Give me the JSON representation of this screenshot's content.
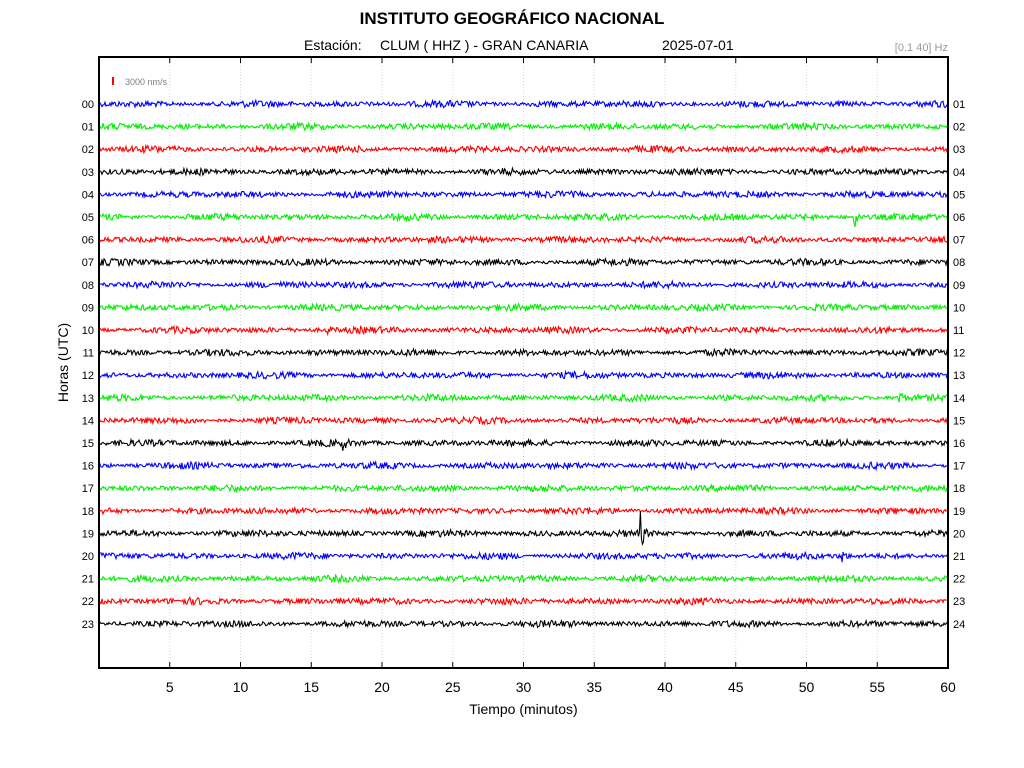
{
  "header": {
    "institution": "INSTITUTO GEOGRÁFICO NACIONAL",
    "station_label": "Estación:",
    "station_value": "CLUM ( HHZ ) - GRAN CANARIA",
    "date": "2025-07-01",
    "filter_band": "[0.1 40] Hz"
  },
  "colors": {
    "trace_cycle": [
      "#0000ff",
      "#00ee00",
      "#ff0000",
      "#000000"
    ],
    "scale_bar": "#ff0000",
    "grid": "#d8d8d8",
    "filter_text": "#9a9a9a"
  },
  "chart_data": {
    "type": "line",
    "title": "INSTITUTO GEOGRÁFICO NACIONAL",
    "xlabel": "Tiempo (minutos)",
    "ylabel": "Horas (UTC)",
    "xlim": [
      0,
      60
    ],
    "x_ticks": [
      5,
      10,
      15,
      20,
      25,
      30,
      35,
      40,
      45,
      50,
      55,
      60
    ],
    "grid": "vertical dotted",
    "scale_bar_label": "3000 nm/s",
    "left_hour_labels": [
      "00",
      "01",
      "02",
      "03",
      "04",
      "05",
      "06",
      "07",
      "08",
      "09",
      "10",
      "11",
      "12",
      "13",
      "14",
      "15",
      "16",
      "17",
      "18",
      "19",
      "20",
      "21",
      "22",
      "23"
    ],
    "right_hour_labels": [
      "01",
      "02",
      "03",
      "04",
      "05",
      "06",
      "07",
      "08",
      "09",
      "10",
      "11",
      "12",
      "13",
      "14",
      "15",
      "16",
      "17",
      "18",
      "19",
      "20",
      "21",
      "22",
      "23",
      "24"
    ],
    "events": [
      {
        "hour": 5,
        "minute": 53.4,
        "amplitude": 3.6
      },
      {
        "hour": 10,
        "minute": 16.1,
        "amplitude": 1.8
      },
      {
        "hour": 13,
        "minute": 56.5,
        "amplitude": 3.0
      },
      {
        "hour": 15,
        "minute": 17.2,
        "amplitude": 1.6
      },
      {
        "hour": 16,
        "minute": 44.0,
        "amplitude": 1.5
      },
      {
        "hour": 19,
        "minute": 38.2,
        "amplitude": 7.0
      },
      {
        "hour": 20,
        "minute": 52.5,
        "amplitude": 2.0
      },
      {
        "hour": 20,
        "minute": 28.0,
        "amplitude": 1.4
      }
    ]
  }
}
